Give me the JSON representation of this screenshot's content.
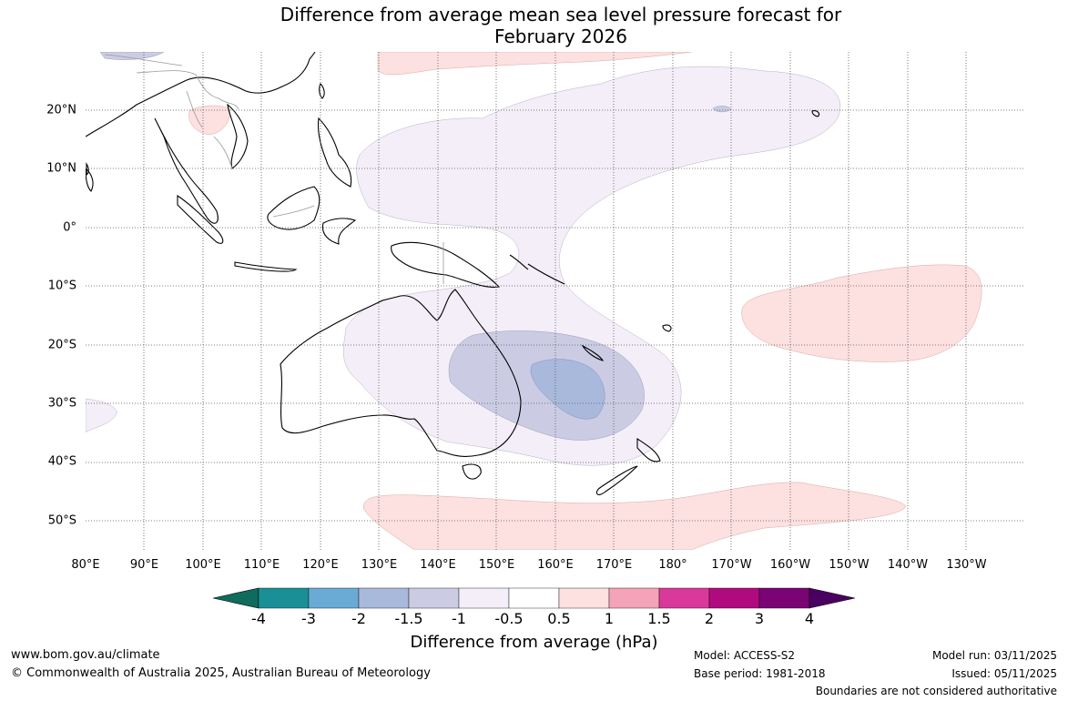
{
  "title_line1": "Difference from average mean sea level pressure forecast for",
  "title_line2": "February 2026",
  "lon_labels": [
    "80°E",
    "90°E",
    "100°E",
    "110°E",
    "120°E",
    "130°E",
    "140°E",
    "150°E",
    "160°E",
    "170°E",
    "180°",
    "170°W",
    "160°W",
    "150°W",
    "140°W",
    "130°W"
  ],
  "lat_labels": [
    "20°N",
    "10°N",
    "0°",
    "10°S",
    "20°S",
    "30°S",
    "40°S",
    "50°S"
  ],
  "colorbar": {
    "title": "Difference from average (hPa)",
    "tick_labels": [
      "-4",
      "-3",
      "-2",
      "-1.5",
      "-1",
      "-0.5",
      "0.5",
      "1",
      "1.5",
      "2",
      "3",
      "4"
    ],
    "colors": [
      "#0f6b5c",
      "#1a9096",
      "#6aaad6",
      "#a8b9dc",
      "#cbcce4",
      "#f3eef7",
      "#ffffff",
      "#fde0e0",
      "#f4a3b9",
      "#d9399a",
      "#b00b7e",
      "#7a0474",
      "#4a0060"
    ]
  },
  "anomaly_regions": [
    {
      "category": "-0.5 to -1",
      "color": "#f3eef7"
    },
    {
      "category": "-1 to -1.5",
      "color": "#cbcce4"
    },
    {
      "category": "-1.5 to -2",
      "color": "#a8b9dc"
    },
    {
      "category": "0.5 to 1",
      "color": "#fde0e0"
    }
  ],
  "footer": {
    "website": "www.bom.gov.au/climate",
    "copyright": "© Commonwealth of Australia 2025, Australian Bureau of Meteorology",
    "model": "Model: ACCESS-S2",
    "base_period": "Base period: 1981-2018",
    "model_run": "Model run: 03/11/2025",
    "issued": "Issued: 05/11/2025",
    "disclaimer": "Boundaries are not considered authoritative"
  }
}
